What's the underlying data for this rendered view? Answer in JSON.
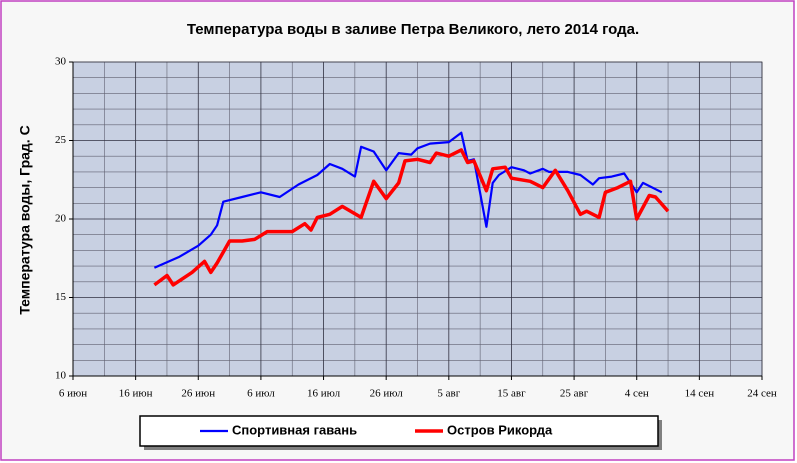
{
  "chart_data": {
    "type": "line",
    "title": "Температура воды в заливе Петра Великого,  лето 2014 года.",
    "y_label": "Температура воды, Град. С",
    "ylim": [
      10,
      30
    ],
    "yticks": [
      10,
      15,
      20,
      25,
      30
    ],
    "minor_yticks": [
      11,
      12,
      13,
      14,
      16,
      17,
      18,
      19,
      21,
      22,
      23,
      24,
      26,
      27,
      28,
      29
    ],
    "xlim": [
      "06-06",
      "09-24"
    ],
    "xticks": [
      {
        "value": "06-06",
        "label": "6 июн"
      },
      {
        "value": "06-16",
        "label": "16 июн"
      },
      {
        "value": "06-26",
        "label": "26 июн"
      },
      {
        "value": "07-06",
        "label": "6 июл"
      },
      {
        "value": "07-16",
        "label": "16 июл"
      },
      {
        "value": "07-26",
        "label": "26 июл"
      },
      {
        "value": "08-05",
        "label": "5 авг"
      },
      {
        "value": "08-15",
        "label": "15 авг"
      },
      {
        "value": "08-25",
        "label": "25 авг"
      },
      {
        "value": "09-04",
        "label": "4 сен"
      },
      {
        "value": "09-14",
        "label": "14 сен"
      },
      {
        "value": "09-24",
        "label": "24 сен"
      }
    ],
    "minor_xticks": [
      "06-11",
      "06-21",
      "07-01",
      "07-11",
      "07-21",
      "07-31",
      "08-10",
      "08-20",
      "08-30",
      "09-09",
      "09-19"
    ],
    "grid": true,
    "series": [
      {
        "name": "Спортивная гавань",
        "color": "#0000ff",
        "x": [
          "06-19",
          "06-23",
          "06-26",
          "06-28",
          "06-29",
          "06-30",
          "07-03",
          "07-06",
          "07-09",
          "07-12",
          "07-15",
          "07-17",
          "07-19",
          "07-21",
          "07-22",
          "07-24",
          "07-26",
          "07-28",
          "07-30",
          "07-31",
          "08-02",
          "08-05",
          "08-07",
          "08-08",
          "08-09",
          "08-11",
          "08-12",
          "08-13",
          "08-15",
          "08-17",
          "08-18",
          "08-20",
          "08-21",
          "08-24",
          "08-26",
          "08-28",
          "08-29",
          "08-31",
          "09-02",
          "09-04",
          "09-05",
          "09-08"
        ],
        "values": [
          16.9,
          17.6,
          18.3,
          19.0,
          19.6,
          21.1,
          21.4,
          21.7,
          21.4,
          22.2,
          22.8,
          23.5,
          23.2,
          22.7,
          24.6,
          24.3,
          23.1,
          24.2,
          24.1,
          24.5,
          24.8,
          24.9,
          25.5,
          23.7,
          23.8,
          19.5,
          22.3,
          22.8,
          23.3,
          23.1,
          22.9,
          23.2,
          23.0,
          23.0,
          22.8,
          22.2,
          22.6,
          22.7,
          22.9,
          21.7,
          22.3,
          21.7
        ]
      },
      {
        "name": "Остров Рикорда",
        "color": "#ff0000",
        "x": [
          "06-19",
          "06-21",
          "06-22",
          "06-25",
          "06-27",
          "06-28",
          "06-29",
          "07-01",
          "07-03",
          "07-05",
          "07-07",
          "07-11",
          "07-13",
          "07-14",
          "07-15",
          "07-17",
          "07-19",
          "07-22",
          "07-24",
          "07-26",
          "07-28",
          "07-29",
          "07-31",
          "08-02",
          "08-03",
          "08-05",
          "08-07",
          "08-08",
          "08-09",
          "08-11",
          "08-12",
          "08-14",
          "08-15",
          "08-18",
          "08-20",
          "08-22",
          "08-24",
          "08-26",
          "08-27",
          "08-29",
          "08-30",
          "09-01",
          "09-03",
          "09-04",
          "09-06",
          "09-07",
          "09-09"
        ],
        "values": [
          15.8,
          16.4,
          15.8,
          16.6,
          17.3,
          16.6,
          17.2,
          18.6,
          18.6,
          18.7,
          19.2,
          19.2,
          19.7,
          19.3,
          20.1,
          20.3,
          20.8,
          20.1,
          22.4,
          21.3,
          22.3,
          23.7,
          23.8,
          23.6,
          24.2,
          24.0,
          24.4,
          23.6,
          23.7,
          21.8,
          23.2,
          23.3,
          22.6,
          22.4,
          22.0,
          23.1,
          21.8,
          20.3,
          20.5,
          20.1,
          21.7,
          22.0,
          22.4,
          20.0,
          21.5,
          21.4,
          20.5
        ]
      }
    ]
  }
}
